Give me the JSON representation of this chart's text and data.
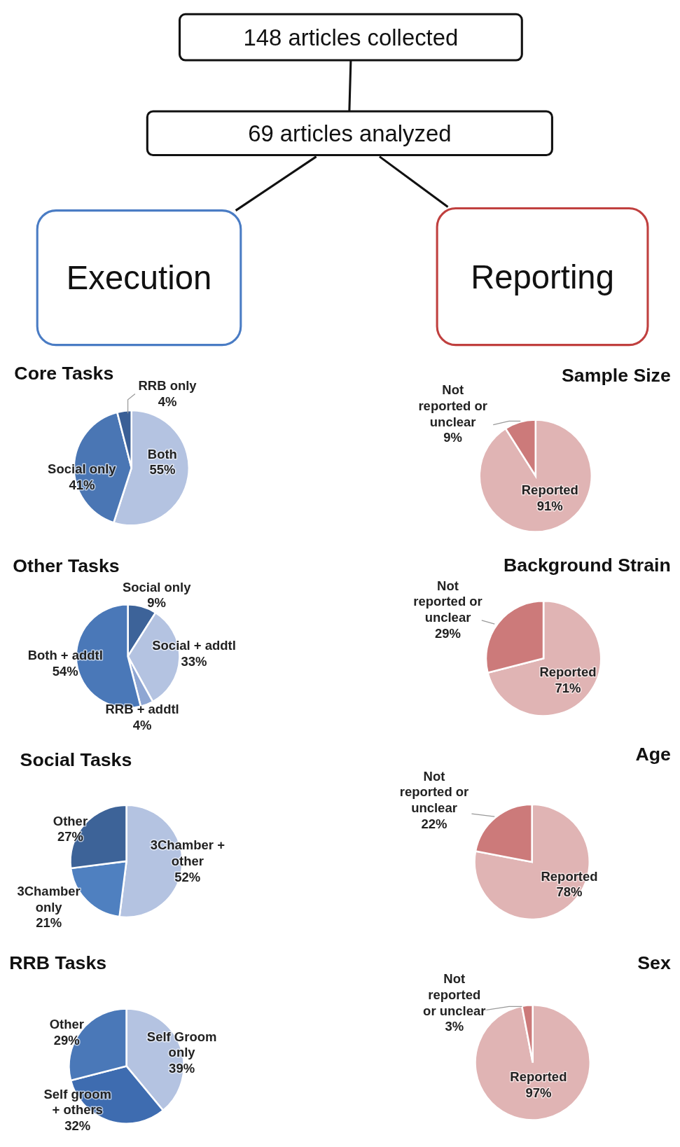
{
  "chart_data": [
    {
      "type": "other",
      "annotations": [
        "148 articles collected",
        "69 articles analyzed",
        "Execution",
        "Reporting"
      ]
    },
    {
      "type": "pie",
      "title": "Core Tasks",
      "categories": [
        "Both",
        "Social only",
        "RRB only"
      ],
      "values": [
        55,
        41,
        4
      ],
      "value_labels": [
        "55%",
        "41%",
        "4%"
      ],
      "colors": [
        "#b4c3e1",
        "#4a76b4",
        "#3a5f96"
      ]
    },
    {
      "type": "pie",
      "title": "Other Tasks",
      "categories": [
        "Social only",
        "Social + addtl",
        "RRB + addtl",
        "Both + addtl"
      ],
      "values": [
        9,
        33,
        4,
        54
      ],
      "value_labels": [
        "9%",
        "33%",
        "4%",
        "54%"
      ],
      "colors": [
        "#3d6399",
        "#b4c3e1",
        "#8ea6d3",
        "#4a78b8"
      ]
    },
    {
      "type": "pie",
      "title": "Social Tasks",
      "categories": [
        "3Chamber + other",
        "3Chamber only",
        "Other"
      ],
      "values": [
        52,
        21,
        27
      ],
      "value_labels": [
        "52%",
        "21%",
        "27%"
      ],
      "colors": [
        "#b4c3e1",
        "#4f80c0",
        "#3d6398"
      ]
    },
    {
      "type": "pie",
      "title": "RRB Tasks",
      "categories": [
        "Self Groom only",
        "Self groom + others",
        "Other"
      ],
      "values": [
        39,
        32,
        29
      ],
      "value_labels": [
        "39%",
        "32%",
        "29%"
      ],
      "colors": [
        "#b4c3e1",
        "#3e6cb0",
        "#4a78b8"
      ]
    },
    {
      "type": "pie",
      "title": "Sample Size",
      "categories": [
        "Reported",
        "Not reported or unclear"
      ],
      "values": [
        91,
        9
      ],
      "value_labels": [
        "91%",
        "9%"
      ],
      "colors": [
        "#e0b4b4",
        "#cc7a7a"
      ]
    },
    {
      "type": "pie",
      "title": "Background Strain",
      "categories": [
        "Reported",
        "Not reported or unclear"
      ],
      "values": [
        71,
        29
      ],
      "value_labels": [
        "71%",
        "29%"
      ],
      "colors": [
        "#e0b4b4",
        "#cc7a7a"
      ]
    },
    {
      "type": "pie",
      "title": "Age",
      "categories": [
        "Reported",
        "Not reported or unclear"
      ],
      "values": [
        78,
        22
      ],
      "value_labels": [
        "78%",
        "22%"
      ],
      "colors": [
        "#e0b4b4",
        "#cc7a7a"
      ]
    },
    {
      "type": "pie",
      "title": "Sex",
      "categories": [
        "Reported",
        "Not reported or unclear"
      ],
      "values": [
        97,
        3
      ],
      "value_labels": [
        "97%",
        "3%"
      ],
      "colors": [
        "#e0b4b4",
        "#cc7a7a"
      ]
    }
  ]
}
